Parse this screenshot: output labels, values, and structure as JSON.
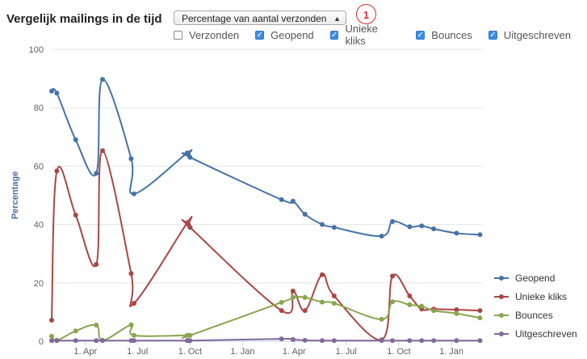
{
  "title": "Vergelijk mailings in de tijd",
  "dropdown": {
    "selected": "Percentage van aantal verzonden"
  },
  "badge": "1",
  "toggles": [
    {
      "label": "Verzonden",
      "checked": false
    },
    {
      "label": "Geopend",
      "checked": true
    },
    {
      "label": "Unieke kliks",
      "checked": true
    },
    {
      "label": "Bounces",
      "checked": true
    },
    {
      "label": "Uitgeschreven",
      "checked": true
    }
  ],
  "chart_data": {
    "type": "line",
    "ylabel": "Percentage",
    "ylim": [
      0,
      100
    ],
    "yticks": [
      0,
      20,
      40,
      60,
      80,
      100
    ],
    "xticks": [
      "1. Apr",
      "1. Jul",
      "1. Oct",
      "1. Jan",
      "1. Apr",
      "1. Jul",
      "1. Oct",
      "1. Jan"
    ],
    "x": [
      "Feb 1",
      "Feb 10",
      "Mar 15",
      "Apr 20",
      "May 1",
      "Jun 20",
      "Jun 25",
      "Sep 26",
      "Sep 28",
      "Oct 1",
      "Mar 10",
      "Mar 30",
      "Apr 20",
      "May 20",
      "Jun 10",
      "Jul 15",
      "Aug 1",
      "Sep 1",
      "Sep 20",
      "Oct 20",
      "Nov 10",
      "Dec 1",
      "Dec 20",
      "Jan 10",
      "Jan 20",
      "Feb 20"
    ],
    "series": [
      {
        "name": "Geopend",
        "color": "#4572a7",
        "x": [
          "Feb 1",
          "Feb 10",
          "Mar 15",
          "Apr 20",
          "May 1",
          "Jun 20",
          "Jun 25",
          "Sep 26",
          "Sep 28",
          "Oct 1",
          "Mar 10",
          "Mar 30",
          "Apr 20",
          "May 20",
          "Jun 10",
          "Sep 1",
          "Sep 20",
          "Oct 20",
          "Nov 10",
          "Dec 1",
          "Jan 10",
          "Feb 20"
        ],
        "values": [
          85.7,
          85,
          69,
          57.5,
          89.7,
          62.5,
          50.5,
          64.5,
          64,
          63,
          48.5,
          48,
          43.5,
          40,
          39,
          36,
          41,
          39.2,
          39.5,
          38.5,
          37,
          36.5
        ]
      },
      {
        "name": "Unieke kliks",
        "color": "#aa4643",
        "x": [
          "Feb 1",
          "Feb 10",
          "Mar 15",
          "Apr 20",
          "May 1",
          "Jun 20",
          "Jun 25",
          "Sep 26",
          "Sep 28",
          "Oct 1",
          "Mar 10",
          "Mar 30",
          "Apr 20",
          "May 20",
          "Jun 10",
          "Sep 1",
          "Sep 20",
          "Oct 20",
          "Nov 10",
          "Dec 1",
          "Jan 10",
          "Feb 20"
        ],
        "values": [
          7.2,
          58.3,
          43.2,
          26.3,
          65.3,
          23.2,
          13,
          40.6,
          40,
          39,
          10.5,
          17.2,
          10.5,
          22.8,
          15.5,
          0.5,
          22.3,
          15.5,
          11,
          11,
          10.8,
          10.5
        ]
      },
      {
        "name": "Bounces",
        "color": "#89a54e",
        "x": [
          "Feb 1",
          "Feb 10",
          "Mar 15",
          "Apr 20",
          "May 1",
          "Jun 20",
          "Jun 25",
          "Sep 26",
          "Sep 28",
          "Oct 1",
          "Mar 10",
          "Mar 30",
          "Apr 20",
          "May 20",
          "Jun 10",
          "Sep 1",
          "Sep 20",
          "Oct 20",
          "Nov 10",
          "Dec 1",
          "Jan 10",
          "Feb 20"
        ],
        "values": [
          1.7,
          0.3,
          3.5,
          5.5,
          0.3,
          5.6,
          2,
          2,
          2,
          2,
          13.3,
          15,
          15,
          13.4,
          13,
          7.5,
          13.5,
          12.5,
          12,
          10.5,
          9.5,
          8
        ]
      },
      {
        "name": "Uitgeschreven",
        "color": "#80699b",
        "x": [
          "Feb 1",
          "Feb 10",
          "Mar 15",
          "Apr 20",
          "May 1",
          "Jun 20",
          "Jun 25",
          "Sep 26",
          "Sep 28",
          "Oct 1",
          "Mar 10",
          "Mar 30",
          "Apr 20",
          "May 20",
          "Jun 10",
          "Sep 1",
          "Sep 20",
          "Oct 20",
          "Nov 10",
          "Dec 1",
          "Jan 10",
          "Feb 20"
        ],
        "values": [
          0.2,
          0.2,
          0.2,
          0.2,
          0.2,
          0.2,
          0.2,
          0.2,
          0.2,
          0.2,
          0.8,
          0.6,
          0.3,
          0.2,
          0.2,
          0.2,
          0.2,
          0.2,
          0.2,
          0.2,
          0.2,
          0.2
        ]
      }
    ],
    "grid": true,
    "legend": "right"
  }
}
